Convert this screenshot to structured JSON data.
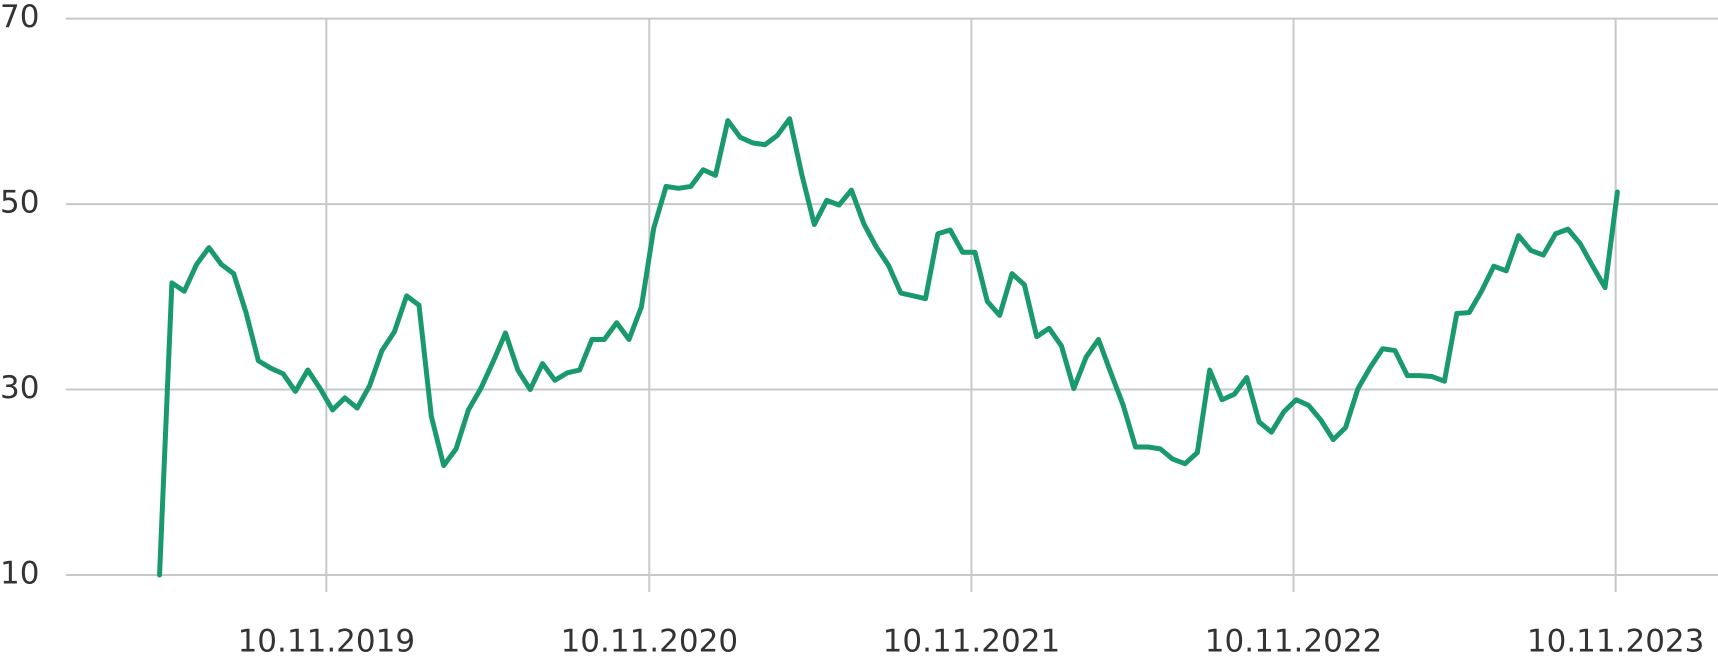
{
  "chart_data": {
    "type": "line",
    "x": [
      "2019-05-05",
      "2019-05-19",
      "2019-06-02",
      "2019-06-16",
      "2019-06-30",
      "2019-07-14",
      "2019-07-28",
      "2019-08-11",
      "2019-08-25",
      "2019-09-08",
      "2019-09-22",
      "2019-10-06",
      "2019-10-20",
      "2019-11-03",
      "2019-11-17",
      "2019-12-01",
      "2019-12-15",
      "2019-12-29",
      "2020-01-12",
      "2020-01-26",
      "2020-02-09",
      "2020-02-23",
      "2020-03-08",
      "2020-03-22",
      "2020-04-05",
      "2020-04-19",
      "2020-05-03",
      "2020-05-17",
      "2020-05-31",
      "2020-06-14",
      "2020-06-28",
      "2020-07-12",
      "2020-07-26",
      "2020-08-09",
      "2020-08-23",
      "2020-09-06",
      "2020-09-20",
      "2020-10-04",
      "2020-10-18",
      "2020-11-01",
      "2020-11-15",
      "2020-11-29",
      "2020-12-13",
      "2020-12-27",
      "2021-01-10",
      "2021-01-24",
      "2021-02-07",
      "2021-02-21",
      "2021-03-07",
      "2021-03-21",
      "2021-04-04",
      "2021-04-18",
      "2021-05-02",
      "2021-05-16",
      "2021-05-30",
      "2021-06-13",
      "2021-06-27",
      "2021-07-11",
      "2021-07-25",
      "2021-08-08",
      "2021-08-22",
      "2021-09-05",
      "2021-09-19",
      "2021-10-03",
      "2021-10-17",
      "2021-10-31",
      "2021-11-14",
      "2021-11-28",
      "2021-12-12",
      "2021-12-26",
      "2022-01-09",
      "2022-01-23",
      "2022-02-06",
      "2022-02-20",
      "2022-03-06",
      "2022-03-20",
      "2022-04-03",
      "2022-04-17",
      "2022-05-01",
      "2022-05-15",
      "2022-05-29",
      "2022-06-12",
      "2022-06-26",
      "2022-07-10",
      "2022-07-24",
      "2022-08-07",
      "2022-08-21",
      "2022-09-04",
      "2022-09-18",
      "2022-10-02",
      "2022-10-16",
      "2022-10-30",
      "2022-11-13",
      "2022-11-27",
      "2022-12-11",
      "2022-12-25",
      "2023-01-08",
      "2023-01-22",
      "2023-02-05",
      "2023-02-19",
      "2023-03-05",
      "2023-03-19",
      "2023-04-02",
      "2023-04-16",
      "2023-04-30",
      "2023-05-14",
      "2023-05-28",
      "2023-06-11",
      "2023-06-25",
      "2023-07-09",
      "2023-07-23",
      "2023-08-06",
      "2023-08-20",
      "2023-09-03",
      "2023-09-17",
      "2023-10-01",
      "2023-10-15",
      "2023-10-29",
      "2023-11-12"
    ],
    "series": [
      {
        "color": "#1a9a6c",
        "values": [
          10.0,
          41.5,
          40.6,
          43.5,
          45.3,
          43.5,
          42.5,
          38.3,
          33.1,
          32.3,
          31.7,
          29.8,
          32.1,
          30.1,
          27.8,
          29.1,
          28.0,
          30.4,
          34.2,
          36.2,
          40.1,
          39.1,
          27.1,
          21.8,
          23.6,
          27.8,
          30.1,
          33.0,
          36.1,
          32.1,
          30.0,
          32.8,
          31.0,
          31.8,
          32.1,
          35.4,
          35.4,
          37.2,
          35.4,
          38.9,
          47.4,
          51.9,
          51.7,
          51.9,
          53.7,
          53.1,
          59.0,
          57.2,
          56.6,
          56.4,
          57.4,
          59.2,
          53.1,
          47.8,
          50.4,
          49.9,
          51.5,
          47.9,
          45.4,
          43.4,
          40.4,
          40.1,
          39.8,
          46.8,
          47.2,
          44.8,
          44.8,
          39.5,
          38.0,
          42.5,
          41.3,
          35.7,
          36.6,
          34.7,
          30.1,
          33.5,
          35.4,
          31.8,
          28.3,
          23.8,
          23.8,
          23.6,
          22.5,
          22.0,
          23.2,
          32.1,
          28.9,
          29.5,
          31.3,
          26.5,
          25.4,
          27.6,
          28.9,
          28.3,
          26.7,
          24.6,
          25.9,
          30.1,
          32.4,
          34.4,
          34.2,
          31.5,
          31.5,
          31.4,
          30.9,
          38.2,
          38.3,
          40.6,
          43.3,
          42.8,
          46.6,
          45.0,
          44.5,
          46.8,
          47.3,
          45.7,
          43.3,
          41.0,
          51.3
        ]
      }
    ],
    "xlim": [
      "2019-01-19",
      "2024-03-05"
    ],
    "xticks": [
      {
        "value": "2019-11-10",
        "label": "10.11.2019"
      },
      {
        "value": "2020-11-10",
        "label": "10.11.2020"
      },
      {
        "value": "2021-11-10",
        "label": "10.11.2021"
      },
      {
        "value": "2022-11-10",
        "label": "10.11.2022"
      },
      {
        "value": "2023-11-10",
        "label": "10.11.2023"
      }
    ],
    "ylim": [
      10,
      70
    ],
    "yticks": [
      10,
      30,
      50,
      70
    ],
    "grid": true
  }
}
